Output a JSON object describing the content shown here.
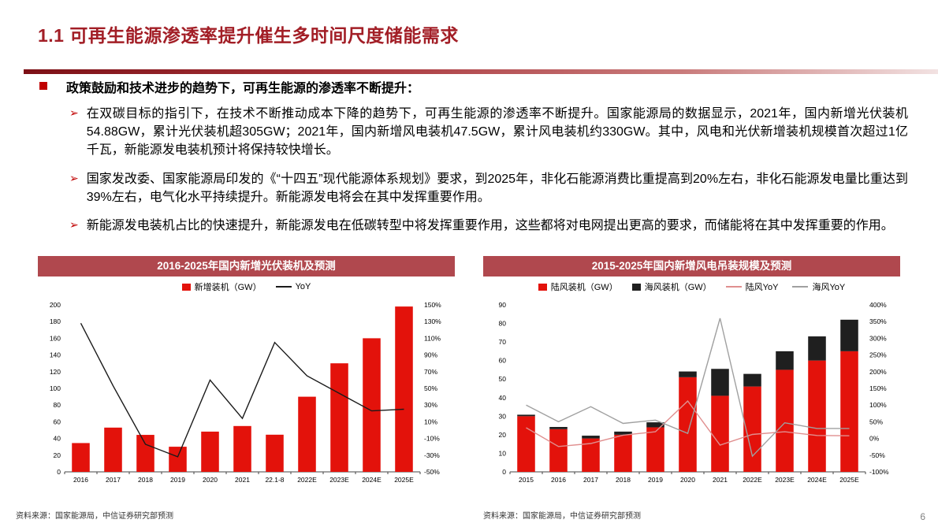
{
  "page": {
    "title": "1.1 可再生能源渗透率提升催生多时间尺度储能需求",
    "page_number": "6"
  },
  "bullets": {
    "arrow_glyph": "➢",
    "main": "政策鼓励和技术进步的趋势下，可再生能源的渗透率不断提升：",
    "items": [
      "在双碳目标的指引下，在技术不断推动成本下降的趋势下，可再生能源的渗透率不断提升。国家能源局的数据显示，2021年，国内新增光伏装机54.88GW，累计光伏装机超305GW；2021年，国内新增风电装机47.5GW，累计风电装机约330GW。其中，风电和光伏新增装机规模首次超过1亿千瓦，新能源发电装机预计将保持较快增长。",
      "国家发改委、国家能源局印发的《“十四五”现代能源体系规划》要求，到2025年，非化石能源消费比重提高到20%左右，非化石能源发电量比重达到39%左右，电气化水平持续提升。新能源发电将会在其中发挥重要作用。",
      "新能源发电装机占比的快速提升，新能源发电在低碳转型中将发挥重要作用，这些都将对电网提出更高的要求，而储能将在其中发挥重要的作用。"
    ]
  },
  "sources": [
    "资料来源：国家能源局，中信证券研究部预测",
    "资料来源：国家能源局，中信证券研究部预测"
  ],
  "colors": {
    "title_red": "#a21e26",
    "bullet_red": "#c00000",
    "chart_header_bg": "#b0484e",
    "bar_red": "#e3120b",
    "bar_black": "#1f1f1f",
    "line_black": "#1a1a1a",
    "line_pink": "#e08f8f",
    "line_gray": "#a0a0a0"
  },
  "chart_data": [
    {
      "type": "bar",
      "title": "2016-2025年国内新增光伏装机及预测",
      "categories": [
        "2016",
        "2017",
        "2018",
        "2019",
        "2020",
        "2021",
        "22.1-8",
        "2022E",
        "2023E",
        "2024E",
        "2025E"
      ],
      "bar_series": [
        {
          "name": "新增装机（GW）",
          "color": "#e3120b",
          "axis": "left",
          "values": [
            34.5,
            53,
            44.3,
            30.1,
            48.2,
            54.9,
            44.5,
            90,
            130,
            160,
            198
          ]
        }
      ],
      "line_series": [
        {
          "name": "YoY",
          "color": "#1a1a1a",
          "axis": "right",
          "values": [
            128,
            53,
            -17,
            -32,
            60,
            14,
            105,
            65,
            44,
            23,
            25
          ]
        }
      ],
      "left_axis": {
        "min": 0,
        "max": 200,
        "step": 20,
        "suffix": ""
      },
      "right_axis": {
        "min": -50,
        "max": 150,
        "step": 20,
        "suffix": "%"
      },
      "grid": false,
      "legend_position": "top",
      "xlabel": "",
      "ylabel_left": "新增装机（GW）",
      "ylabel_right": "YoY"
    },
    {
      "type": "bar",
      "title": "2015-2025年国内新增风电吊装规模及预测",
      "categories": [
        "2015",
        "2016",
        "2017",
        "2018",
        "2019",
        "2020",
        "2021",
        "2022E",
        "2023E",
        "2024E",
        "2025E"
      ],
      "bar_series": [
        {
          "name": "陆风装机（GW）",
          "color": "#e3120b",
          "axis": "left",
          "values": [
            30,
            23,
            18,
            20,
            24,
            51,
            41,
            46,
            55,
            60,
            65
          ]
        },
        {
          "name": "海风装机（GW）",
          "color": "#1f1f1f",
          "axis": "left",
          "values": [
            0.8,
            1.2,
            1.5,
            1.7,
            2.7,
            3.1,
            14.5,
            6.8,
            10,
            13,
            17
          ]
        }
      ],
      "line_series": [
        {
          "name": "陆风YoY",
          "color": "#e08f8f",
          "axis": "right",
          "values": [
            32,
            -24,
            -15,
            10,
            20,
            112,
            -20,
            12,
            20,
            9,
            8
          ]
        },
        {
          "name": "海风YoY",
          "color": "#a0a0a0",
          "axis": "right",
          "values": [
            100,
            50,
            95,
            45,
            55,
            15,
            360,
            -53,
            47,
            30,
            30
          ]
        }
      ],
      "left_axis": {
        "min": 0,
        "max": 90,
        "step": 10,
        "suffix": ""
      },
      "right_axis": {
        "min": -100,
        "max": 400,
        "step": 50,
        "suffix": "%"
      },
      "grid": false,
      "legend_position": "top",
      "xlabel": "",
      "ylabel_left": "装机（GW）",
      "ylabel_right": "YoY"
    }
  ]
}
